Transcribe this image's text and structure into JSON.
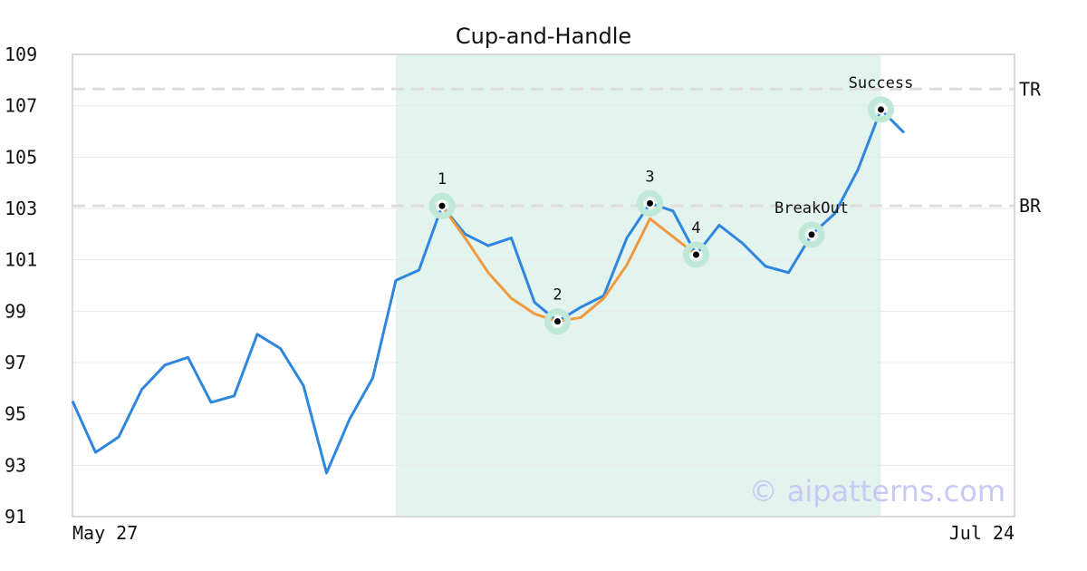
{
  "chart_data": {
    "type": "line",
    "title": "Cup-and-Handle",
    "x_start_label": "May 27",
    "x_end_label": "Jul 24",
    "ylim": [
      91,
      109
    ],
    "yticks": [
      91,
      93,
      95,
      97,
      99,
      101,
      103,
      105,
      107,
      109
    ],
    "grid": true,
    "colors": {
      "price": "#2e86de",
      "pattern": "#f0993e",
      "highlight": "#e3f3ee",
      "marker_ring": "#bfe8d7",
      "level_line": "#dddddd",
      "axis": "#d9d9d9",
      "grid": "#e8e8e8"
    },
    "series": [
      {
        "values": [
          95.5,
          93.5,
          94.1,
          95.95,
          96.9,
          97.2,
          95.45,
          95.7,
          98.1,
          97.55,
          96.1,
          92.7,
          94.8,
          96.4,
          100.2,
          100.6,
          103.1,
          102.0,
          101.55,
          101.85,
          99.35,
          98.6,
          99.15,
          99.6,
          101.85,
          103.2,
          102.9,
          101.2,
          102.35,
          101.65,
          100.75,
          100.5,
          101.98,
          102.8,
          104.5,
          106.85,
          105.95
        ]
      }
    ],
    "pattern_line": {
      "start_index": 16,
      "values": [
        103.1,
        101.85,
        100.5,
        99.5,
        98.9,
        98.6,
        98.75,
        99.5,
        100.8,
        102.6,
        101.9,
        101.2
      ]
    },
    "highlight_range": {
      "start_index": 14,
      "end_index": 35
    },
    "levels": [
      {
        "label": "TR",
        "value": 107.65
      },
      {
        "label": "BR",
        "value": 103.1
      }
    ],
    "points": [
      {
        "label": "1",
        "index": 16,
        "value": 103.1,
        "label_pos": "above"
      },
      {
        "label": "2",
        "index": 21,
        "value": 98.6,
        "label_pos": "above"
      },
      {
        "label": "3",
        "index": 25,
        "value": 103.2,
        "label_pos": "above"
      },
      {
        "label": "4",
        "index": 27,
        "value": 101.2,
        "label_pos": "above"
      },
      {
        "label": "BreakOut",
        "index": 32,
        "value": 101.98,
        "label_pos": "above"
      },
      {
        "label": "Success",
        "index": 35,
        "value": 106.85,
        "label_pos": "above"
      }
    ],
    "watermark": "© aipatterns.com"
  }
}
